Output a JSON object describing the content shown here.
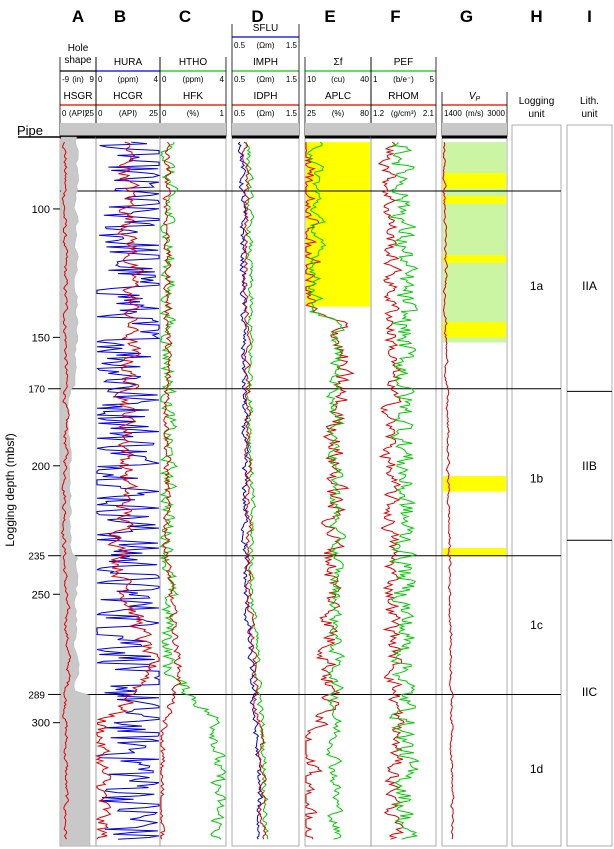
{
  "chart_data": {
    "type": "line",
    "y_axis": {
      "label": "Logging depth (mbsf)",
      "range": [
        72,
        348
      ],
      "ticks": [
        100,
        150,
        200,
        250,
        300
      ],
      "boundary_ticks": [
        170,
        235,
        289
      ],
      "pipe_label": "Pipe",
      "pipe_depth": 74
    },
    "unit_boundaries": [
      93,
      170,
      235,
      289
    ],
    "columns": [
      {
        "letter": "A",
        "headers": [
          {
            "name": "Hole\nshape",
            "min": "-9",
            "unit": "(in)",
            "max": "9",
            "color": "#000000"
          },
          {
            "name": "HSGR",
            "min": "0",
            "unit": "(API)",
            "max": "25",
            "color": "#e00000"
          }
        ]
      },
      {
        "letter": "B",
        "headers": [
          {
            "name": "HURA",
            "min": "0",
            "unit": "(ppm)",
            "max": "4",
            "color": "#0000e0"
          },
          {
            "name": "HCGR",
            "min": "0",
            "unit": "(API)",
            "max": "25",
            "color": "#e00000"
          }
        ]
      },
      {
        "letter": "C",
        "headers": [
          {
            "name": "HTHO",
            "min": "0",
            "unit": "(ppm)",
            "max": "4",
            "color": "#00cc00"
          },
          {
            "name": "HFK",
            "min": "0",
            "unit": "(%)",
            "max": "1",
            "color": "#e00000"
          }
        ]
      },
      {
        "letter": "D",
        "headers": [
          {
            "name": "SFLU",
            "min": "0.5",
            "unit": "(Ωm)",
            "max": "1.5",
            "color": "#0000e0"
          },
          {
            "name": "IMPH",
            "min": "0.5",
            "unit": "(Ωm)",
            "max": "1.5",
            "color": "#00cc00"
          },
          {
            "name": "IDPH",
            "min": "0.5",
            "unit": "(Ωm)",
            "max": "1.5",
            "color": "#e00000"
          }
        ]
      },
      {
        "letter": "E",
        "headers": [
          {
            "name": "Σf",
            "min": "10",
            "unit": "(cu)",
            "max": "40",
            "color": "#00cc00"
          },
          {
            "name": "APLC",
            "min": "25",
            "unit": "(%)",
            "max": "80",
            "color": "#e00000"
          }
        ]
      },
      {
        "letter": "F",
        "headers": [
          {
            "name": "PEF",
            "min": "1",
            "unit": "(b/e⁻)",
            "max": "5",
            "color": "#00cc00"
          },
          {
            "name": "RHOM",
            "min": "1.2",
            "unit": "(g/cm³)",
            "max": "2.1",
            "color": "#e00000"
          }
        ]
      },
      {
        "letter": "G",
        "headers": [
          {
            "name": "VP",
            "min": "1400",
            "unit": "(m/s)",
            "max": "3000",
            "color": "#e00000"
          }
        ]
      },
      {
        "letter": "H",
        "title": "Logging\nunit",
        "units": [
          {
            "label": "1a",
            "depth": 130
          },
          {
            "label": "1b",
            "depth": 205
          },
          {
            "label": "1c",
            "depth": 262
          },
          {
            "label": "1d",
            "depth": 318
          }
        ]
      },
      {
        "letter": "I",
        "title": "Lith.\nunit",
        "boundaries": [
          171,
          229
        ],
        "units": [
          {
            "label": "IIA",
            "depth": 130
          },
          {
            "label": "IIB",
            "depth": 200
          },
          {
            "label": "IIC",
            "depth": 288
          }
        ]
      }
    ],
    "x_axis_colors": {
      "red": "#e00000",
      "blue": "#0000e0",
      "green": "#00cc00",
      "yellow": "#ffff00",
      "lightgreen": "#ccf5a3",
      "gray": "#c8c8c8"
    },
    "series_samples": {
      "HSGR": [
        [
          74,
          4
        ],
        [
          100,
          3
        ],
        [
          150,
          4
        ],
        [
          200,
          4
        ],
        [
          235,
          3
        ],
        [
          281,
          6
        ],
        [
          290,
          4
        ],
        [
          330,
          4
        ]
      ],
      "HCGR": [
        [
          74,
          12
        ],
        [
          120,
          14
        ],
        [
          170,
          13
        ],
        [
          200,
          12
        ],
        [
          240,
          10
        ],
        [
          281,
          22
        ],
        [
          295,
          10
        ],
        [
          300,
          2
        ]
      ],
      "HFK": [
        [
          74,
          0.1
        ],
        [
          150,
          0.12
        ],
        [
          235,
          0.1
        ],
        [
          282,
          0.3
        ],
        [
          297,
          0.1
        ],
        [
          305,
          0.02
        ]
      ],
      "APLC": [
        [
          74,
          25
        ],
        [
          140,
          28
        ],
        [
          145,
          55
        ],
        [
          200,
          50
        ],
        [
          250,
          48
        ],
        [
          300,
          45
        ],
        [
          308,
          25
        ]
      ],
      "RHOM": [
        [
          74,
          1.45
        ],
        [
          150,
          1.5
        ],
        [
          200,
          1.45
        ],
        [
          250,
          1.5
        ],
        [
          300,
          1.55
        ],
        [
          340,
          1.5
        ]
      ],
      "VP": [
        [
          74,
          1450
        ],
        [
          150,
          1500
        ],
        [
          200,
          1550
        ],
        [
          250,
          1600
        ],
        [
          300,
          1650
        ],
        [
          340,
          1650
        ]
      ]
    },
    "fills": {
      "APLC_yellow": [
        [
          74,
          138
        ]
      ],
      "VP_yellow": [
        [
          86,
          92
        ],
        [
          95,
          98
        ],
        [
          118,
          121
        ],
        [
          144,
          150
        ],
        [
          204,
          210
        ],
        [
          232,
          235
        ]
      ],
      "VP_lightgreen": [
        [
          74,
          152
        ]
      ]
    }
  }
}
